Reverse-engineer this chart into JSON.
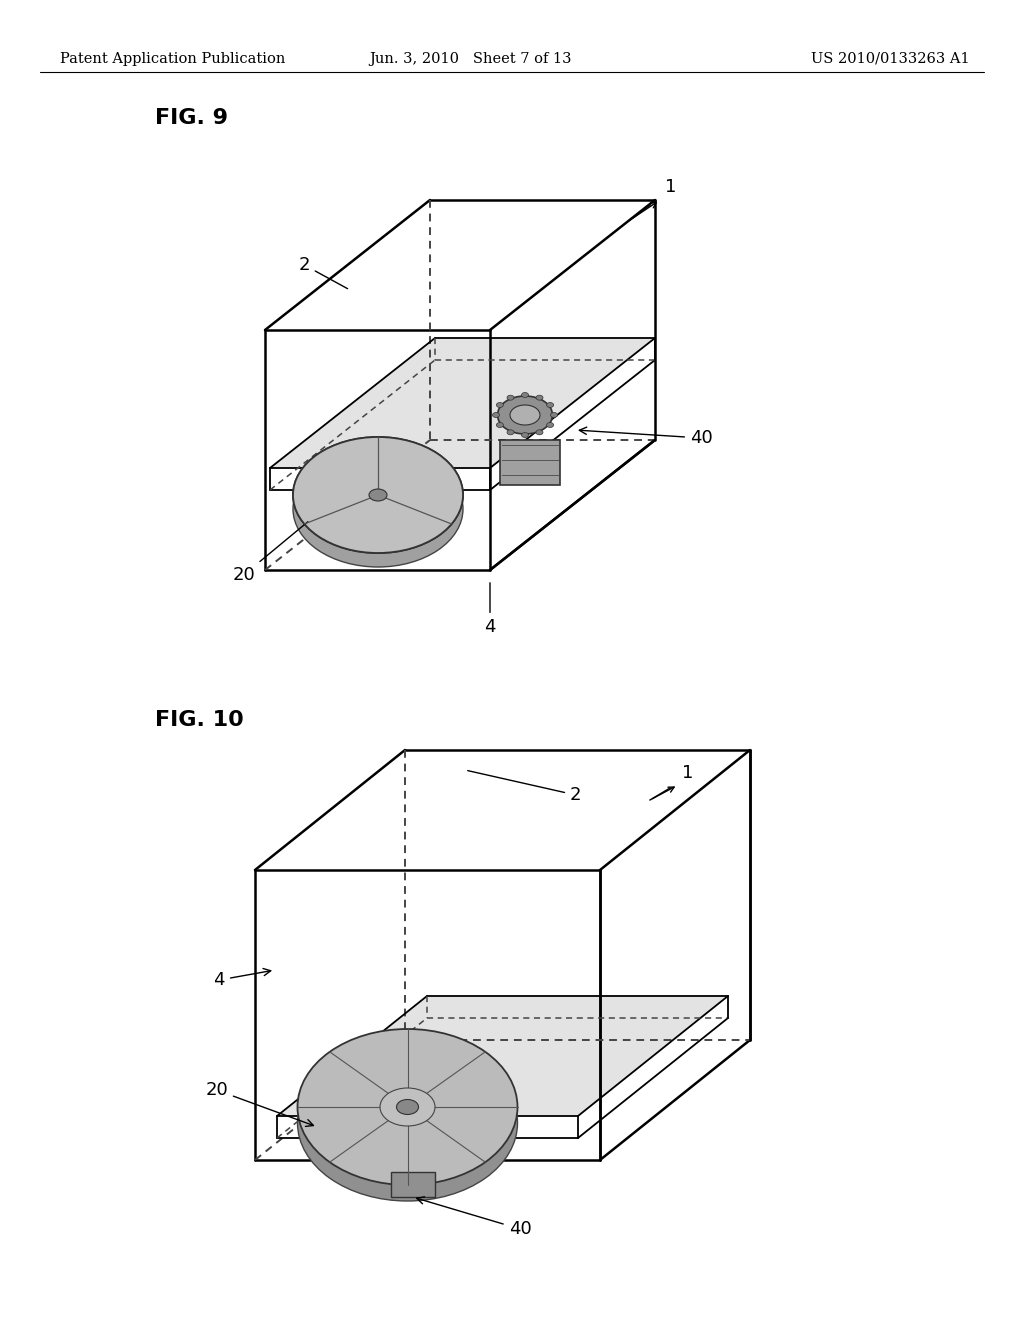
{
  "background_color": "#ffffff",
  "page_header": {
    "left": "Patent Application Publication",
    "center": "Jun. 3, 2010   Sheet 7 of 13",
    "right": "US 2010/0133263 A1",
    "fontsize": 10.5
  },
  "fig9": {
    "label": "FIG. 9",
    "label_fontsize": 16,
    "label_fontweight": "bold"
  },
  "fig10": {
    "label": "FIG. 10",
    "label_fontsize": 16,
    "label_fontweight": "bold"
  }
}
